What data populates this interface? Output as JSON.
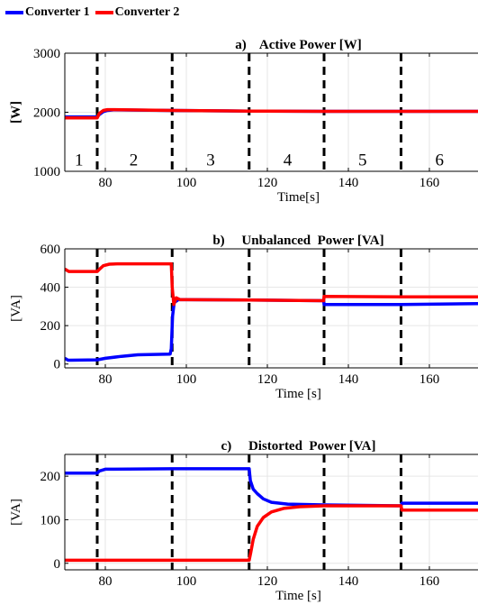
{
  "legend": [
    {
      "name": "Converter 1",
      "color": "#0000ff"
    },
    {
      "name": "Converter 2",
      "color": "#ff0000"
    }
  ],
  "chart_data": [
    {
      "type": "line",
      "title": "a)    Active Power [W]",
      "xlabel": "Time[s]",
      "ylabel": "[W]",
      "xlim": [
        70,
        172
      ],
      "ylim": [
        1000,
        3000
      ],
      "xticks": [
        80,
        100,
        120,
        140,
        160
      ],
      "yticks": [
        1000,
        2000,
        3000
      ],
      "grid": true,
      "event_lines": [
        78,
        96.5,
        115.5,
        134,
        153
      ],
      "region_labels": [
        {
          "text": "1",
          "x": 73.5
        },
        {
          "text": "2",
          "x": 87
        },
        {
          "text": "3",
          "x": 106
        },
        {
          "text": "4",
          "x": 125
        },
        {
          "text": "5",
          "x": 143.5
        },
        {
          "text": "6",
          "x": 162.5
        }
      ],
      "region_label_y": 1100,
      "series": [
        {
          "name": "Converter 1",
          "color": "#0000ff",
          "x": [
            70,
            78,
            78.5,
            79.5,
            80.5,
            82,
            96.5,
            115.5,
            120,
            134,
            153,
            172
          ],
          "y": [
            1920,
            1920,
            1960,
            2010,
            2030,
            2040,
            2030,
            2020,
            2020,
            2015,
            2015,
            2015
          ]
        },
        {
          "name": "Converter 2",
          "color": "#ff0000",
          "x": [
            70,
            78,
            78.5,
            79.5,
            80.5,
            82,
            96.5,
            115.5,
            120,
            134,
            153,
            172
          ],
          "y": [
            1905,
            1905,
            1980,
            2030,
            2045,
            2045,
            2030,
            2020,
            2020,
            2015,
            2015,
            2015
          ]
        }
      ]
    },
    {
      "type": "line",
      "title": "b)     Unbalanced  Power [VA]",
      "xlabel": "Time [s]",
      "ylabel": "[VA]",
      "xlim": [
        70,
        172
      ],
      "ylim": [
        -20,
        600
      ],
      "xticks": [
        80,
        100,
        120,
        140,
        160
      ],
      "yticks": [
        0,
        200,
        400,
        600
      ],
      "grid": true,
      "event_lines": [
        78,
        96.5,
        115.5,
        134,
        153
      ],
      "series": [
        {
          "name": "Converter 1",
          "color": "#0000ff",
          "x": [
            70,
            70.8,
            71.5,
            78,
            80,
            84,
            88,
            92,
            96,
            96.3,
            96.6,
            97,
            98,
            100,
            115.5,
            133.9,
            134,
            153,
            172
          ],
          "y": [
            30,
            20,
            20,
            22,
            30,
            40,
            48,
            50,
            52,
            80,
            250,
            320,
            335,
            335,
            333,
            330,
            310,
            310,
            315
          ]
        },
        {
          "name": "Converter 2",
          "color": "#ff0000",
          "x": [
            70,
            71,
            78,
            78.6,
            79.5,
            81,
            83,
            96.3,
            96.5,
            96.9,
            97.5,
            98.5,
            100,
            115.5,
            133.9,
            134,
            153,
            172
          ],
          "y": [
            495,
            482,
            482,
            495,
            512,
            520,
            522,
            522,
            400,
            310,
            345,
            335,
            335,
            333,
            330,
            352,
            350,
            350
          ]
        }
      ]
    },
    {
      "type": "line",
      "title": "c)     Distorted  Power [VA]",
      "xlabel": "Time [s]",
      "ylabel": "[VA]",
      "xlim": [
        70,
        172
      ],
      "ylim": [
        -15,
        250
      ],
      "xticks": [
        80,
        100,
        120,
        140,
        160
      ],
      "yticks": [
        0,
        100,
        200
      ],
      "grid": true,
      "event_lines": [
        78,
        96.5,
        115.5,
        134,
        153
      ],
      "series": [
        {
          "name": "Converter 1",
          "color": "#0000ff",
          "x": [
            70,
            78,
            78.5,
            80,
            96.5,
            115.5,
            115.8,
            116.5,
            117.5,
            119,
            121,
            125,
            134,
            153,
            153.2,
            172
          ],
          "y": [
            207,
            207,
            212,
            216,
            217,
            217,
            190,
            170,
            160,
            148,
            140,
            136,
            134,
            132,
            138,
            138
          ]
        },
        {
          "name": "Converter 2",
          "color": "#ff0000",
          "x": [
            70,
            115.5,
            115.9,
            116.5,
            117.5,
            119,
            121,
            124,
            128,
            134,
            153,
            153.2,
            172
          ],
          "y": [
            7,
            7,
            25,
            55,
            85,
            105,
            118,
            126,
            130,
            132,
            132,
            122,
            122
          ]
        }
      ]
    }
  ]
}
